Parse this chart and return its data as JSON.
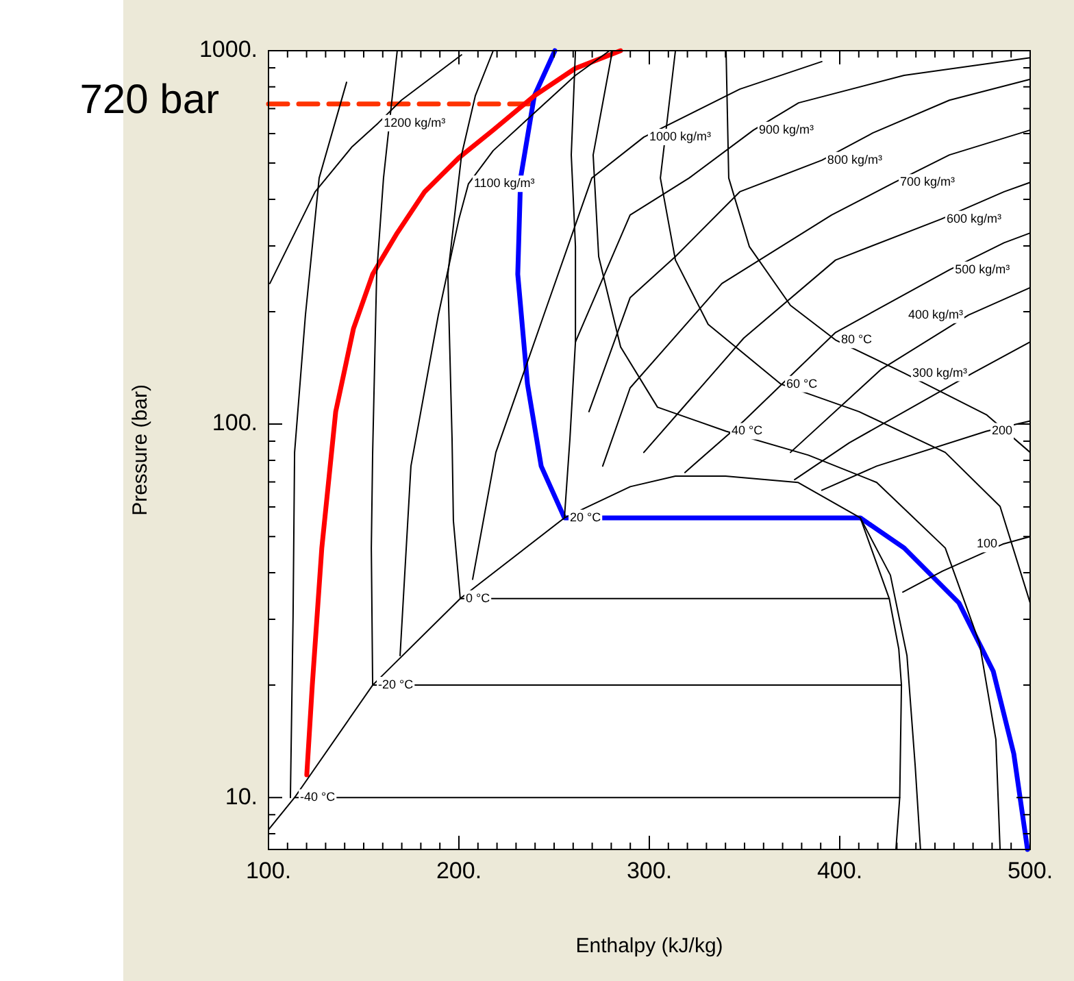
{
  "chart_data": {
    "type": "line",
    "xlabel": "Enthalpy (kJ/kg)",
    "ylabel": "Pressure (bar)",
    "log": "y",
    "grid": false,
    "legend": false,
    "marker": "none",
    "xlim": [
      100,
      500
    ],
    "ylim": [
      7.26,
      1000
    ],
    "xticks": [
      {
        "value": 100,
        "label": "100."
      },
      {
        "value": 110,
        "label": null
      },
      {
        "value": 120,
        "label": null
      },
      {
        "value": 130,
        "label": null
      },
      {
        "value": 140,
        "label": null
      },
      {
        "value": 150,
        "label": null
      },
      {
        "value": 160,
        "label": null
      },
      {
        "value": 170,
        "label": null
      },
      {
        "value": 180,
        "label": null
      },
      {
        "value": 190,
        "label": null
      },
      {
        "value": 200,
        "label": "200."
      },
      {
        "value": 210,
        "label": null
      },
      {
        "value": 220,
        "label": null
      },
      {
        "value": 230,
        "label": null
      },
      {
        "value": 240,
        "label": null
      },
      {
        "value": 250,
        "label": null
      },
      {
        "value": 260,
        "label": null
      },
      {
        "value": 270,
        "label": null
      },
      {
        "value": 280,
        "label": null
      },
      {
        "value": 290,
        "label": null
      },
      {
        "value": 300,
        "label": "300."
      },
      {
        "value": 310,
        "label": null
      },
      {
        "value": 320,
        "label": null
      },
      {
        "value": 330,
        "label": null
      },
      {
        "value": 340,
        "label": null
      },
      {
        "value": 350,
        "label": null
      },
      {
        "value": 360,
        "label": null
      },
      {
        "value": 370,
        "label": null
      },
      {
        "value": 380,
        "label": null
      },
      {
        "value": 390,
        "label": null
      },
      {
        "value": 400,
        "label": "400."
      },
      {
        "value": 410,
        "label": null
      },
      {
        "value": 420,
        "label": null
      },
      {
        "value": 430,
        "label": null
      },
      {
        "value": 440,
        "label": null
      },
      {
        "value": 450,
        "label": null
      },
      {
        "value": 460,
        "label": null
      },
      {
        "value": 470,
        "label": null
      },
      {
        "value": 480,
        "label": null
      },
      {
        "value": 490,
        "label": null
      },
      {
        "value": 500,
        "label": "500."
      }
    ],
    "yticks": [
      {
        "value": 8,
        "label": null
      },
      {
        "value": 9,
        "label": null
      },
      {
        "value": 10,
        "label": "10."
      },
      {
        "value": 20,
        "label": null
      },
      {
        "value": 30,
        "label": null
      },
      {
        "value": 40,
        "label": null
      },
      {
        "value": 50,
        "label": null
      },
      {
        "value": 60,
        "label": null
      },
      {
        "value": 70,
        "label": null
      },
      {
        "value": 80,
        "label": null
      },
      {
        "value": 90,
        "label": null
      },
      {
        "value": 100,
        "label": "100."
      },
      {
        "value": 200,
        "label": null
      },
      {
        "value": 300,
        "label": null
      },
      {
        "value": 400,
        "label": null
      },
      {
        "value": 500,
        "label": null
      },
      {
        "value": 600,
        "label": null
      },
      {
        "value": 700,
        "label": null
      },
      {
        "value": 800,
        "label": null
      },
      {
        "value": 900,
        "label": null
      },
      {
        "value": 1000,
        "label": "1000."
      }
    ],
    "series": [
      {
        "color": "#000000",
        "x": [
          100,
          113.7,
          154.7,
          200.7,
          255.4,
          290,
          313.7,
          340,
          378,
          410.8,
          426,
          431,
          432.4,
          431.5,
          429.5
        ],
        "values": [
          8.2,
          10,
          20,
          34.1,
          56.1,
          68,
          72.6,
          72.6,
          69.8,
          56.1,
          34.1,
          25,
          20,
          10,
          7.26
        ]
      },
      {
        "color": "#000000",
        "x": [
          113.7,
          431.5
        ],
        "values": [
          10,
          10
        ]
      },
      {
        "color": "#000000",
        "x": [
          154.7,
          432.4
        ],
        "values": [
          20,
          20
        ]
      },
      {
        "color": "#000000",
        "x": [
          200.7,
          426
        ],
        "values": [
          34.1,
          34.1
        ]
      },
      {
        "color": "#000000",
        "x": [
          111.5,
          112.9,
          113.7,
          119.4,
          126.6,
          141
        ],
        "values": [
          10,
          30.5,
          84,
          196,
          456,
          823
        ]
      },
      {
        "color": "#000000",
        "x": [
          154.7,
          154,
          154.7,
          156.8,
          160.4,
          167.6
        ],
        "values": [
          20,
          46.6,
          84,
          252,
          456,
          1000
        ]
      },
      {
        "color": "#000000",
        "x": [
          200.7,
          197.1,
          196.4,
          194.2,
          201.4,
          208.6,
          218
        ],
        "values": [
          34.1,
          55.1,
          91.4,
          252,
          526,
          757,
          1000
        ]
      },
      {
        "color": "#000000",
        "x": [
          255.4,
          258.3,
          261.2,
          261.2,
          259,
          261.2
        ],
        "values": [
          56.1,
          91.4,
          166,
          299,
          526,
          1000
        ]
      },
      {
        "color": "#000000",
        "x": [
          410.8,
          426.6,
          435.3,
          439.6,
          442.4
        ],
        "values": [
          56.1,
          39.4,
          24,
          12.2,
          7.26
        ]
      },
      {
        "color": "#000000",
        "x": [
          280.6,
          270.5,
          273.4,
          284.9,
          304.3,
          340.3,
          383.5,
          419.4,
          455.4,
          473.4,
          482,
          484.2
        ],
        "values": [
          1000,
          526,
          281,
          161,
          111,
          95.7,
          82.6,
          69.8,
          46.6,
          25.9,
          14.3,
          7.26
        ]
      },
      {
        "color": "#000000",
        "x": [
          313.7,
          305.8,
          313.7,
          330.9,
          369.1,
          410.1,
          455.4,
          484.2,
          500
        ],
        "values": [
          1000,
          456,
          275,
          185,
          128,
          108,
          84,
          60.2,
          33.2
        ]
      },
      {
        "color": "#000000",
        "x": [
          340.3,
          341.7,
          352.5,
          374.1,
          397.8,
          433.8,
          477,
          500
        ],
        "values": [
          1000,
          456,
          299,
          208,
          168,
          137,
          106,
          84
        ]
      },
      {
        "color": "#000000",
        "x": [
          100.7,
          124.5,
          143.9,
          157.6,
          169.8,
          201.4
        ],
        "values": [
          238,
          419,
          553,
          640,
          737,
          975
        ]
      },
      {
        "color": "#000000",
        "x": [
          169.1,
          174.8,
          189.2,
          200,
          205,
          218,
          261.2,
          279.1
        ],
        "values": [
          24,
          77.2,
          196,
          354,
          440,
          540,
          859,
          1000
        ]
      },
      {
        "color": "#000000",
        "x": [
          207.2,
          219.4,
          244.6,
          269.8,
          297.1,
          347.5,
          390.6
        ],
        "values": [
          38.4,
          84,
          196,
          456,
          587,
          789,
          935
        ]
      },
      {
        "color": "#000000",
        "x": [
          261.2,
          289.9,
          320.9,
          354.7,
          378.4,
          433.8,
          500
        ],
        "values": [
          166,
          363,
          456,
          613,
          725,
          859,
          958
        ]
      },
      {
        "color": "#000000",
        "x": [
          268.3,
          289.9,
          313.7,
          347.5,
          390.6,
          417.3,
          457.6,
          500
        ],
        "values": [
          108,
          218,
          281,
          419,
          509,
          602,
          737,
          838
        ]
      },
      {
        "color": "#000000",
        "x": [
          275.5,
          289.9,
          338.1,
          395.7,
          428.8,
          457.6,
          500
        ],
        "values": [
          77.2,
          125,
          238,
          363,
          444,
          526,
          613
        ]
      },
      {
        "color": "#000000",
        "x": [
          297.1,
          349.6,
          397.8,
          453.2,
          486.3,
          500
        ],
        "values": [
          84,
          170,
          275,
          354,
          419,
          444
        ]
      },
      {
        "color": "#000000",
        "x": [
          318.7,
          349.6,
          397.8,
          457.6,
          486.3,
          500
        ],
        "values": [
          74.2,
          102,
          176,
          259,
          306,
          325
        ]
      },
      {
        "color": "#000000",
        "x": [
          374.1,
          421.6,
          467.6,
          500
        ],
        "values": [
          84,
          140,
          196,
          232
        ]
      },
      {
        "color": "#000000",
        "x": [
          376.3,
          405,
          469.8,
          500
        ],
        "values": [
          71,
          89.1,
          137,
          166
        ]
      },
      {
        "color": "#000000",
        "x": [
          390.6,
          419.4,
          477,
          500
        ],
        "values": [
          66.5,
          77.2,
          95.7,
          102
        ]
      },
      {
        "color": "#000000",
        "x": [
          433.1,
          454,
          485.6,
          500
        ],
        "values": [
          35.5,
          40.4,
          47.7,
          50
        ]
      },
      {
        "color": "#ff0000",
        "x": [
          120.1,
          123,
          128,
          135.3,
          144.6,
          154.7,
          167.6,
          182,
          200,
          218,
          239.6,
          261,
          284.9
        ],
        "values": [
          11.5,
          20,
          46.6,
          108,
          180,
          252,
          325,
          419,
          517,
          613,
          757,
          896,
          1000
        ]
      },
      {
        "color": "#0000ff",
        "x": [
          250.4,
          239.6,
          232.4,
          230.9,
          236,
          243.2,
          255.4,
          410.8,
          433.8,
          462.6,
          480.6,
          491.4,
          498.6
        ],
        "values": [
          1000,
          757,
          456,
          252,
          128,
          77.2,
          56.1,
          56.1,
          46.6,
          33.2,
          21.8,
          13.1,
          7.26
        ]
      },
      {
        "color": "#ff3300",
        "line_style": "dashed",
        "x": [
          100,
          240
        ],
        "values": [
          720,
          720
        ]
      }
    ],
    "annotations": [
      "720 bar",
      {
        "text": "1200 kg/m³",
        "x": 157.6,
        "y": 640
      },
      {
        "text": "1100 kg/m³",
        "x": 205,
        "y": 440
      },
      {
        "text": "1000 kg/m³",
        "x": 297.1,
        "y": 587
      },
      {
        "text": "900 kg/m³",
        "x": 354.7,
        "y": 613
      },
      {
        "text": "800 kg/m³",
        "x": 390.6,
        "y": 509
      },
      {
        "text": "700 kg/m³",
        "x": 428.8,
        "y": 444
      },
      {
        "text": "600 kg/m³",
        "x": 453.2,
        "y": 354
      },
      {
        "text": "500 kg/m³",
        "x": 457.6,
        "y": 259
      },
      {
        "text": "400 kg/m³",
        "x": 467.6,
        "y": 196
      },
      {
        "text": "300 kg/m³",
        "x": 469.8,
        "y": 137
      },
      {
        "text": "200",
        "x": 477,
        "y": 95.7
      },
      {
        "text": "100",
        "x": 485.6,
        "y": 47.7
      },
      {
        "text": "80 °C",
        "x": 397.8,
        "y": 168
      },
      {
        "text": "60 °C",
        "x": 369.1,
        "y": 128
      },
      {
        "text": "40 °C",
        "x": 340.3,
        "y": 95.7
      },
      {
        "text": "20 °C",
        "x": 255.4,
        "y": 56.1
      },
      {
        "text": "0 °C",
        "x": 200.7,
        "y": 34.1
      },
      {
        "text": "-20 °C",
        "x": 154.7,
        "y": 20
      },
      {
        "text": "-40 °C",
        "x": 113.7,
        "y": 10
      }
    ]
  }
}
